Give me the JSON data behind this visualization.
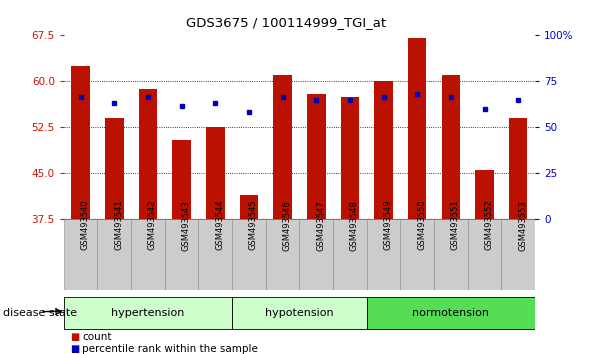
{
  "title": "GDS3675 / 100114999_TGI_at",
  "samples": [
    "GSM493540",
    "GSM493541",
    "GSM493542",
    "GSM493543",
    "GSM493544",
    "GSM493545",
    "GSM493546",
    "GSM493547",
    "GSM493548",
    "GSM493549",
    "GSM493550",
    "GSM493551",
    "GSM493552",
    "GSM493553"
  ],
  "count_values": [
    62.5,
    54.0,
    58.8,
    50.5,
    52.5,
    41.5,
    61.0,
    58.0,
    57.5,
    60.0,
    67.0,
    61.0,
    45.5,
    54.0
  ],
  "percentile_values": [
    57.5,
    56.5,
    57.5,
    56.0,
    56.5,
    55.0,
    57.5,
    57.0,
    57.0,
    57.5,
    58.0,
    57.5,
    55.5,
    57.0
  ],
  "ylim": [
    37.5,
    67.5
  ],
  "yticks_left": [
    37.5,
    45.0,
    52.5,
    60.0,
    67.5
  ],
  "right_yticks_pct": [
    0,
    25,
    50,
    75,
    100
  ],
  "groups_info": [
    {
      "label": "hypertension",
      "start": 0,
      "end": 4,
      "color": "#ccffcc"
    },
    {
      "label": "hypotension",
      "start": 5,
      "end": 8,
      "color": "#ccffcc"
    },
    {
      "label": "normotension",
      "start": 9,
      "end": 13,
      "color": "#55dd55"
    }
  ],
  "bar_color": "#bb1100",
  "dot_color": "#0000bb",
  "axis_color_left": "#cc1100",
  "axis_color_right": "#0000cc",
  "legend_items": [
    "count",
    "percentile rank within the sample"
  ],
  "disease_state_label": "disease state",
  "background_color": "#ffffff",
  "tick_bg_color": "#cccccc",
  "grid_color": "#000000"
}
